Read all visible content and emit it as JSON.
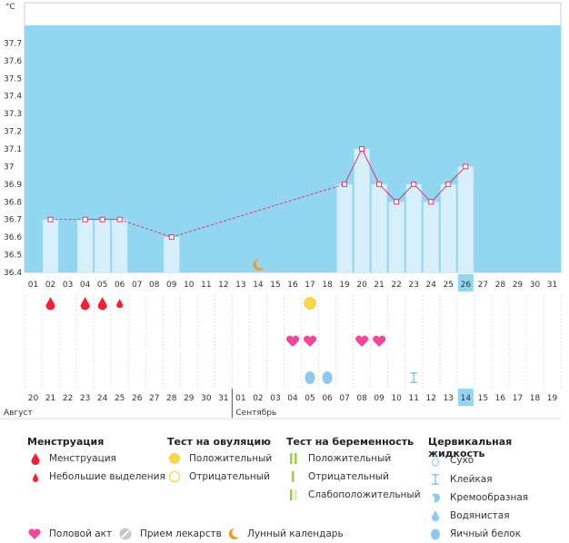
{
  "chart_data": {
    "type": "line",
    "ylabel": "°C",
    "ylim": [
      36.4,
      37.8
    ],
    "y_ticks": [
      "37.7",
      "37.6",
      "37.5",
      "37.4",
      "37.3",
      "37.2",
      "37.1",
      "37",
      "36.9",
      "36.8",
      "36.7",
      "36.6",
      "36.5",
      "36.4"
    ],
    "cycle_days": [
      "01",
      "02",
      "03",
      "04",
      "05",
      "06",
      "07",
      "08",
      "09",
      "10",
      "11",
      "12",
      "13",
      "14",
      "15",
      "16",
      "17",
      "18",
      "19",
      "20",
      "21",
      "22",
      "23",
      "24",
      "25",
      "26",
      "27",
      "28",
      "29",
      "30",
      "31"
    ],
    "highlight_cycle_day": "26",
    "temperatures": [
      null,
      36.7,
      null,
      36.7,
      36.7,
      36.7,
      null,
      null,
      36.6,
      null,
      null,
      null,
      null,
      null,
      null,
      null,
      null,
      null,
      36.9,
      37.1,
      36.9,
      36.8,
      36.9,
      36.8,
      36.9,
      37.0,
      null,
      null,
      null,
      null,
      null
    ],
    "bars": [
      null,
      36.7,
      null,
      36.7,
      36.7,
      36.7,
      null,
      null,
      36.6,
      null,
      null,
      null,
      null,
      null,
      null,
      null,
      null,
      null,
      36.9,
      37.1,
      36.9,
      36.8,
      36.9,
      36.8,
      36.9,
      37.0,
      null,
      null,
      null,
      null,
      null
    ],
    "dates": [
      "20",
      "21",
      "22",
      "23",
      "24",
      "25",
      "26",
      "27",
      "28",
      "29",
      "30",
      "31",
      "01",
      "02",
      "03",
      "04",
      "05",
      "06",
      "07",
      "08",
      "09",
      "10",
      "11",
      "12",
      "13",
      "14",
      "15",
      "16",
      "17",
      "18",
      "19"
    ],
    "red_dates": [
      "23",
      "24",
      "30",
      "31",
      "06",
      "07",
      "13"
    ],
    "highlight_date_index": 25,
    "months": [
      {
        "label": "Август",
        "start_index": 0
      },
      {
        "label": "Сентябрь",
        "start_index": 12
      }
    ],
    "moon_day_index": 13,
    "rows": {
      "menstruation": [
        {
          "day": 1,
          "kind": "full"
        },
        {
          "day": 3,
          "kind": "full"
        },
        {
          "day": 4,
          "kind": "full"
        },
        {
          "day": 5,
          "kind": "light"
        }
      ],
      "ovulation_test": [
        {
          "day": 16,
          "kind": "positive"
        }
      ],
      "intercourse": [
        {
          "day": 15
        },
        {
          "day": 16
        },
        {
          "day": 19
        },
        {
          "day": 20
        }
      ],
      "cervical": [
        {
          "day": 16,
          "kind": "egg-white"
        },
        {
          "day": 17,
          "kind": "egg-white"
        },
        {
          "day": 22,
          "kind": "sticky"
        }
      ]
    }
  },
  "legend": {
    "menstruation": {
      "title": "Менструация",
      "items": [
        "Менструация",
        "Небольшие выделения"
      ]
    },
    "ovulation": {
      "title": "Тест на овуляцию",
      "items": [
        "Положительный",
        "Отрицательный"
      ]
    },
    "pregnancy": {
      "title": "Тест на беременность",
      "items": [
        "Положительный",
        "Отрицательный",
        "Слабоположительный"
      ]
    },
    "cervical": {
      "title": "Цервикальная жидкость",
      "items": [
        "Сухо",
        "Клейкая",
        "Кремообразная",
        "Водянистая",
        "Яичный белок"
      ]
    },
    "bottom": [
      "Половой акт",
      "Прием лекарств",
      "Лунный календарь"
    ]
  },
  "colors": {
    "plot_bg": "#93d6f1",
    "bar": "#d7effb",
    "line": "#e0295a",
    "menstruation": "#f0203a",
    "ovulation_pos": "#f9d54a",
    "heart": "#f2479c",
    "fluid": "#8cc9ee",
    "preg_pos": "#9bd23a",
    "moon": "#f29a1a",
    "highlight": "#93d6f1"
  }
}
